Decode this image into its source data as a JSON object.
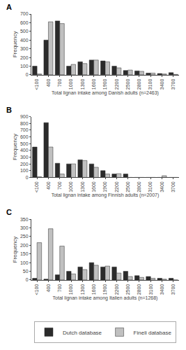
{
  "chart_data": [
    {
      "type": "bar",
      "title": "A",
      "ylabel": "Frequency",
      "xlabel": "Total lignan intake among Danish adults (n=2463)",
      "categories": [
        "<100",
        "400",
        "700",
        "1000",
        "1300",
        "1600",
        "1900",
        "2200",
        "2500",
        "2800",
        "3100",
        "3400",
        "3700"
      ],
      "series": [
        {
          "name": "Dutch database",
          "color": "#2b2b2b",
          "values": [
            100,
            400,
            620,
            100,
            150,
            170,
            160,
            100,
            50,
            45,
            20,
            15,
            25
          ]
        },
        {
          "name": "Fineli database",
          "color": "#c0c0c0",
          "values": [
            10,
            610,
            590,
            120,
            130,
            170,
            150,
            80,
            55,
            40,
            20,
            10,
            5
          ]
        }
      ],
      "ylim": [
        0,
        700
      ],
      "yticks": [
        0,
        100,
        200,
        300,
        400,
        500,
        600,
        700
      ],
      "grid": false
    },
    {
      "type": "bar",
      "title": "B",
      "ylabel": "Frequency",
      "xlabel": "Total lignan intake among Finnish adults (n=2007)",
      "categories": [
        "<100",
        "400",
        "700",
        "1000",
        "1300",
        "1600",
        "1900",
        "2200",
        "2500",
        "2800",
        "3100",
        "3400",
        "3700"
      ],
      "series": [
        {
          "name": "Dutch database",
          "color": "#2b2b2b",
          "values": [
            450,
            810,
            210,
            200,
            260,
            200,
            100,
            50,
            50,
            0,
            0,
            0,
            0
          ]
        },
        {
          "name": "Fineli database",
          "color": "#c0c0c0",
          "values": [
            10,
            450,
            50,
            200,
            250,
            150,
            50,
            55,
            0,
            0,
            0,
            25,
            0
          ]
        }
      ],
      "ylim": [
        0,
        900
      ],
      "yticks": [
        0,
        100,
        200,
        300,
        400,
        500,
        600,
        700,
        800,
        900
      ],
      "grid": false
    },
    {
      "type": "bar",
      "title": "C",
      "ylabel": "Frequency",
      "xlabel": "Total lignan intake among Italien adults (n=1268)",
      "categories": [
        "<100",
        "400",
        "700",
        "1000",
        "1300",
        "1600",
        "1900",
        "2200",
        "2500",
        "2800",
        "3100",
        "3400",
        "3700"
      ],
      "series": [
        {
          "name": "Dutch database",
          "color": "#2b2b2b",
          "values": [
            10,
            5,
            30,
            50,
            75,
            100,
            75,
            75,
            50,
            25,
            20,
            10,
            10
          ]
        },
        {
          "name": "Fineli database",
          "color": "#c0c0c0",
          "values": [
            215,
            295,
            195,
            35,
            60,
            85,
            80,
            40,
            20,
            15,
            10,
            5,
            0
          ]
        }
      ],
      "ylim": [
        0,
        350
      ],
      "yticks": [
        0,
        50,
        100,
        150,
        200,
        250,
        300,
        350
      ],
      "grid": false,
      "legend": "bottom"
    }
  ]
}
